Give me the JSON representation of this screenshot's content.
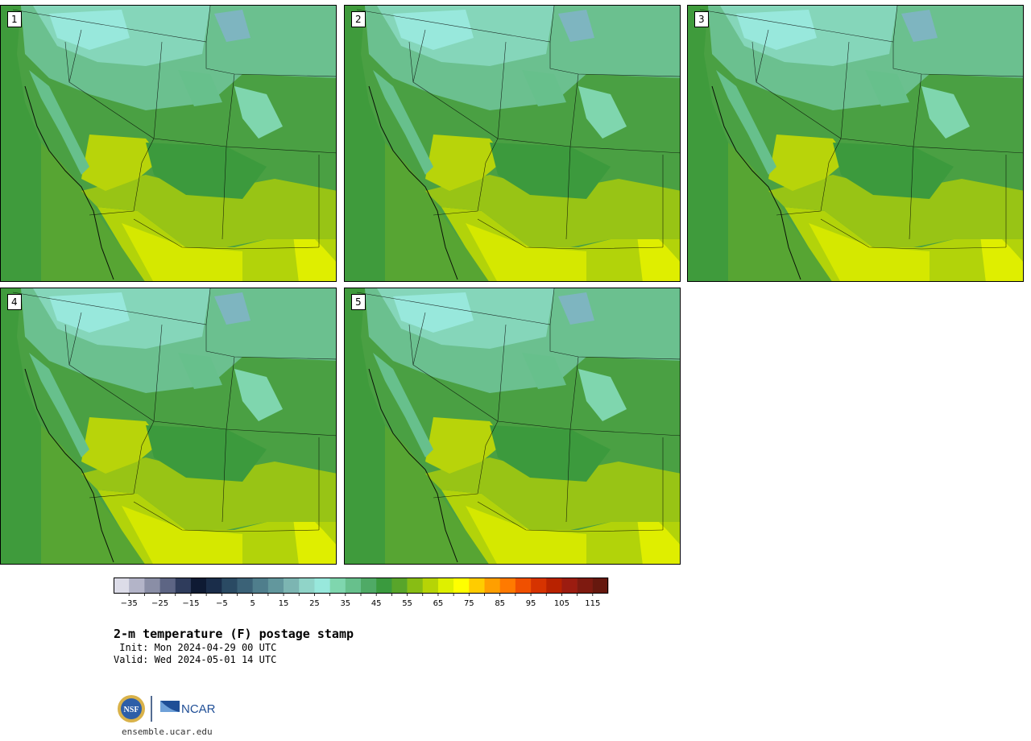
{
  "panels": [
    {
      "label": "1"
    },
    {
      "label": "2"
    },
    {
      "label": "3"
    },
    {
      "label": "4"
    },
    {
      "label": "5"
    }
  ],
  "colorbar": {
    "colors": [
      "#dcdce8",
      "#b3b4c8",
      "#8a8ea6",
      "#5d6584",
      "#2f3c5c",
      "#0e1a33",
      "#1a2d4a",
      "#2a4a63",
      "#3b6277",
      "#4f7e8c",
      "#62979d",
      "#7cb5b2",
      "#90d4c8",
      "#98e8dc",
      "#7fd6ae",
      "#67c08c",
      "#4faa66",
      "#3a9a3e",
      "#58a52a",
      "#88bd14",
      "#b6d406",
      "#def000",
      "#ffff00",
      "#ffcc00",
      "#ff9f00",
      "#ff7a00",
      "#f05000",
      "#d63300",
      "#b82200",
      "#9c1c10",
      "#7e1a10",
      "#66180e"
    ],
    "tick_labels": [
      "−35",
      "−25",
      "−15",
      "−5",
      "5",
      "15",
      "25",
      "35",
      "45",
      "55",
      "65",
      "75",
      "85",
      "95",
      "105",
      "115"
    ]
  },
  "title": "2-m temperature (F) postage stamp",
  "init_line": " Init: Mon 2024-04-29 00 UTC",
  "valid_line": "Valid: Wed 2024-05-01 14 UTC",
  "logo": {
    "nsf_text": "NSF",
    "ncar_text": "NCAR"
  },
  "url": "ensemble.ucar.edu"
}
